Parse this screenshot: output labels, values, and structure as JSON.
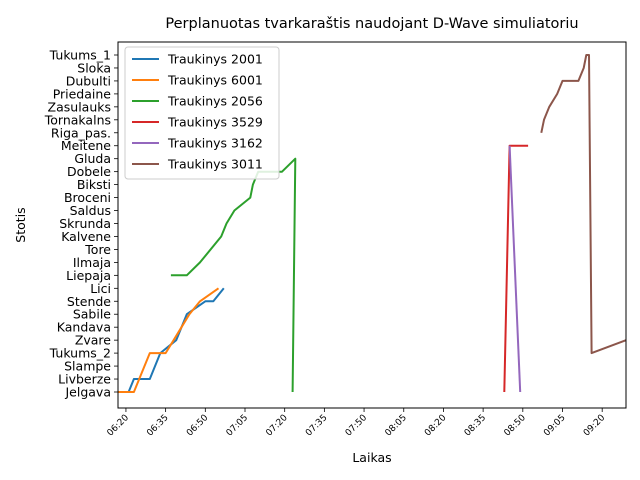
{
  "chart_data": {
    "type": "line",
    "title": "Perplanuotas tvarkaraštis naudojant D-Wave simuliatoriu",
    "xlabel": "Laikas",
    "ylabel": "Stotis",
    "x_unit": "time of day (HH:MM)",
    "xlim": [
      "06:17",
      "09:29"
    ],
    "x_ticks": [
      "06:20",
      "06:35",
      "06:50",
      "07:05",
      "07:20",
      "07:35",
      "07:50",
      "08:05",
      "08:20",
      "08:35",
      "08:50",
      "09:05",
      "09:20"
    ],
    "y_categories": [
      "Jelgava",
      "Livberze",
      "Slampe",
      "Tukums_2",
      "Zvare",
      "Kandava",
      "Sabile",
      "Stende",
      "Lici",
      "Liepaja",
      "Ilmaja",
      "Tore",
      "Kalvene",
      "Skrunda",
      "Saldus",
      "Broceni",
      "Biksti",
      "Dobele",
      "Gluda",
      "Meitene",
      "Riga_pas.",
      "Tornakalns",
      "Zasulauks",
      "Priedaine",
      "Dubulti",
      "Sloka",
      "Tukums_1"
    ],
    "grid": false,
    "legend_position": "top-left",
    "series": [
      {
        "name": "Traukinys 2001",
        "color": "#1f77b4",
        "points": [
          [
            "06:17",
            "Jelgava"
          ],
          [
            "06:21",
            "Jelgava"
          ],
          [
            "06:23",
            "Livberze"
          ],
          [
            "06:29",
            "Livberze"
          ],
          [
            "06:33",
            "Tukums_2"
          ],
          [
            "06:39",
            "Zvare"
          ],
          [
            "06:43",
            "Sabile"
          ],
          [
            "06:50",
            "Stende"
          ],
          [
            "06:53",
            "Stende"
          ],
          [
            "06:57",
            "Lici"
          ]
        ]
      },
      {
        "name": "Traukinys 6001",
        "color": "#ff7f0e",
        "points": [
          [
            "06:17",
            "Jelgava"
          ],
          [
            "06:23",
            "Jelgava"
          ],
          [
            "06:29",
            "Tukums_2"
          ],
          [
            "06:35",
            "Tukums_2"
          ],
          [
            "06:38",
            "Zvare"
          ],
          [
            "06:44",
            "Sabile"
          ],
          [
            "06:48",
            "Stende"
          ],
          [
            "06:55",
            "Lici"
          ]
        ]
      },
      {
        "name": "Traukinys 2056",
        "color": "#2ca02c",
        "points": [
          [
            "06:37",
            "Liepaja"
          ],
          [
            "06:43",
            "Liepaja"
          ],
          [
            "06:48",
            "Ilmaja"
          ],
          [
            "06:56",
            "Kalvene"
          ],
          [
            "06:58",
            "Skrunda"
          ],
          [
            "07:01",
            "Saldus"
          ],
          [
            "07:07",
            "Broceni"
          ],
          [
            "07:08",
            "Biksti"
          ],
          [
            "07:10",
            "Dobele"
          ],
          [
            "07:19",
            "Dobele"
          ],
          [
            "07:24",
            "Gluda"
          ],
          [
            "07:24",
            "Gluda"
          ],
          [
            "07:23",
            "Jelgava"
          ]
        ]
      },
      {
        "name": "Traukinys 3529",
        "color": "#d62728",
        "points": [
          [
            "08:43",
            "Jelgava"
          ],
          [
            "08:45",
            "Meitene"
          ],
          [
            "08:52",
            "Meitene"
          ]
        ]
      },
      {
        "name": "Traukinys 3162",
        "color": "#9467bd",
        "points": [
          [
            "08:45",
            "Meitene"
          ],
          [
            "08:49",
            "Jelgava"
          ]
        ]
      },
      {
        "name": "Traukinys 3011",
        "color": "#8c564b",
        "points": [
          [
            "08:57",
            "Riga_pas."
          ],
          [
            "08:58",
            "Tornakalns"
          ],
          [
            "09:00",
            "Zasulauks"
          ],
          [
            "09:03",
            "Priedaine"
          ],
          [
            "09:05",
            "Dubulti"
          ],
          [
            "09:11",
            "Dubulti"
          ],
          [
            "09:13",
            "Sloka"
          ],
          [
            "09:14",
            "Tukums_1"
          ],
          [
            "09:15",
            "Tukums_1"
          ],
          [
            "09:16",
            "Tukums_2"
          ],
          [
            "09:29",
            "Zvare"
          ]
        ]
      }
    ]
  }
}
